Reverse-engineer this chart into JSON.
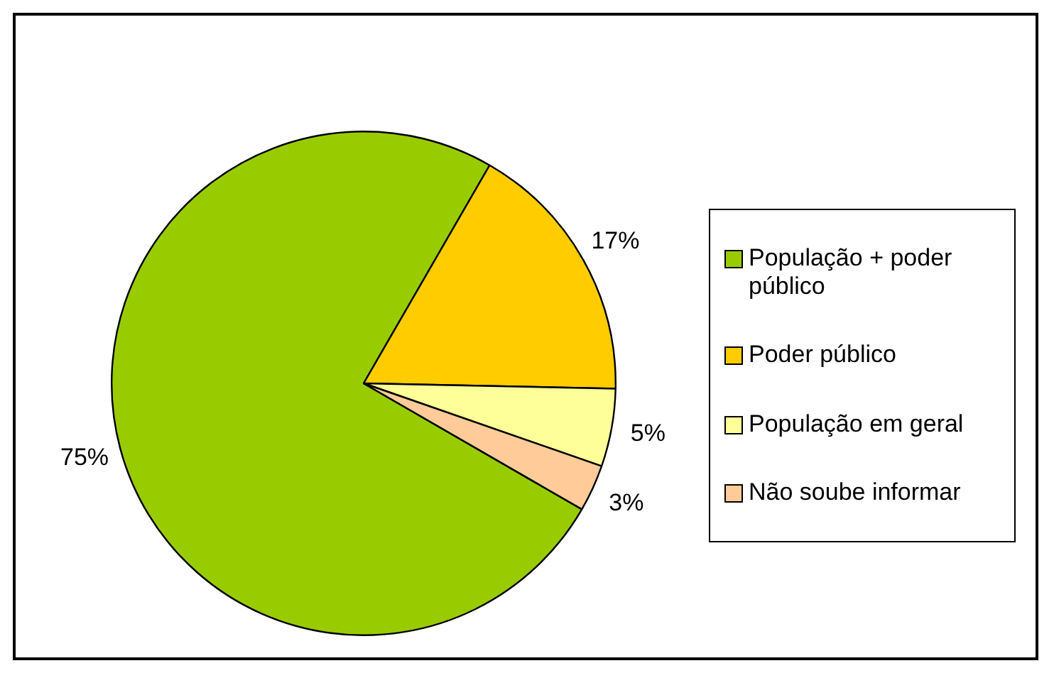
{
  "chart_data": {
    "type": "pie",
    "categories": [
      "População + poder público",
      "Poder público",
      "População em geral",
      "Não soube informar"
    ],
    "values": [
      75,
      17,
      5,
      3
    ],
    "colors": [
      "#99cc00",
      "#ffcc00",
      "#ffff99",
      "#ffcc99"
    ],
    "value_labels": [
      "75%",
      "17%",
      "5%",
      "3%"
    ],
    "legend": "right"
  }
}
